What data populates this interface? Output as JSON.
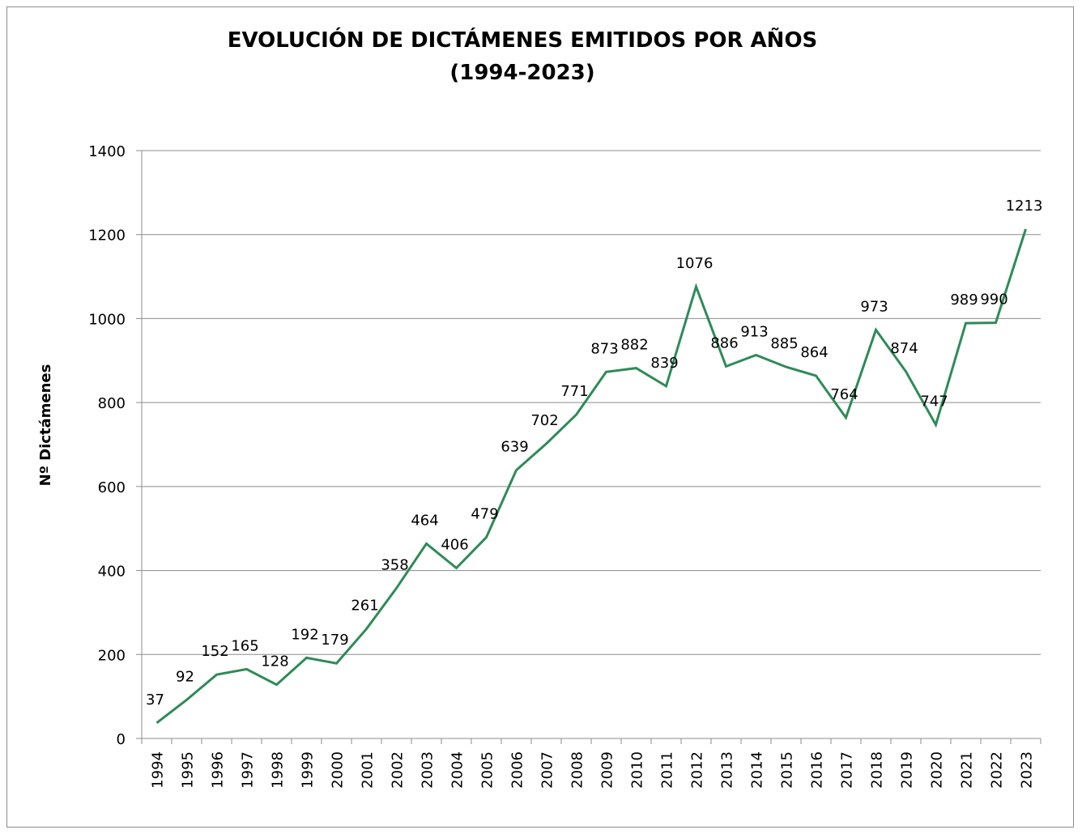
{
  "chart_data": {
    "type": "line",
    "title": "EVOLUCIÓN DE DICTÁMENES EMITIDOS POR AÑOS",
    "subtitle": "(1994-2023)",
    "xlabel": "",
    "ylabel": "Nº Dictámenes",
    "ylim": [
      0,
      1400
    ],
    "yticks": [
      0,
      200,
      400,
      600,
      800,
      1000,
      1200,
      1400
    ],
    "grid": true,
    "legend": "none",
    "line_color": "#2e8b57",
    "categories": [
      "1994",
      "1995",
      "1996",
      "1997",
      "1998",
      "1999",
      "2000",
      "2001",
      "2002",
      "2003",
      "2004",
      "2005",
      "2006",
      "2007",
      "2008",
      "2009",
      "2010",
      "2011",
      "2012",
      "2013",
      "2014",
      "2015",
      "2016",
      "2017",
      "2018",
      "2019",
      "2020",
      "2021",
      "2022",
      "2023"
    ],
    "values": [
      37,
      92,
      152,
      165,
      128,
      192,
      179,
      261,
      358,
      464,
      406,
      479,
      639,
      702,
      771,
      873,
      882,
      839,
      1076,
      886,
      913,
      885,
      864,
      764,
      973,
      874,
      747,
      989,
      990,
      1213
    ]
  }
}
